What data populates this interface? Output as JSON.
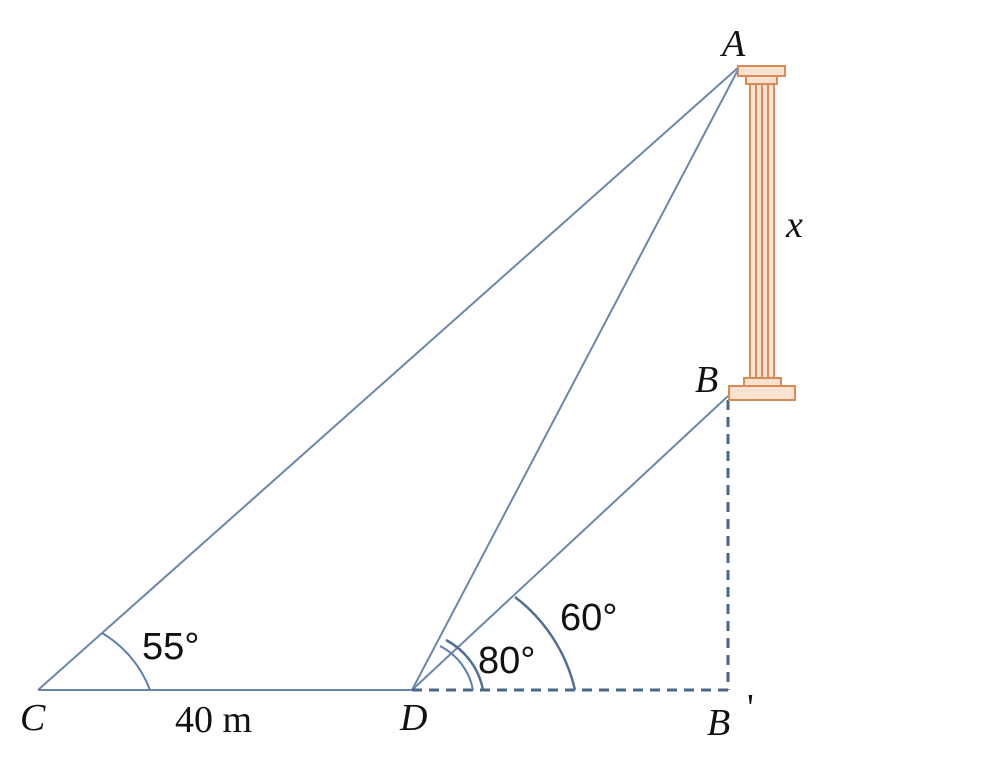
{
  "labels": {
    "point_a": "A",
    "point_b": "B",
    "point_c": "C",
    "point_d": "D",
    "point_b_prime": "B",
    "prime_mark": "'",
    "height_variable": "x",
    "distance": "40 m"
  },
  "angles": {
    "angle_c": "55°",
    "angle_d_to_a": "80°",
    "angle_d_to_b": "60°"
  },
  "colors": {
    "line": "#6b86ad",
    "column_fill": "#fbe2d0",
    "column_stroke": "#d98b57"
  },
  "icons": {
    "column": "greek-column-icon"
  }
}
